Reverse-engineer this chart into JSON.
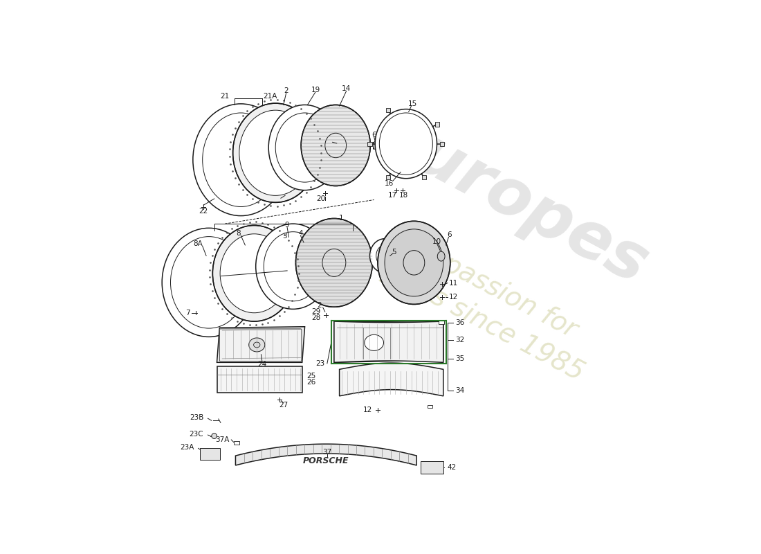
{
  "bg_color": "#ffffff",
  "line_color": "#1a1a1a",
  "parts_labels": {
    "upper": [
      "21",
      "21A",
      "2",
      "19",
      "14",
      "6",
      "15",
      "16",
      "17",
      "18",
      "20",
      "22"
    ],
    "lower": [
      "1",
      "8A",
      "8",
      "9",
      "3",
      "4",
      "5",
      "2",
      "7",
      "10",
      "6",
      "11",
      "12",
      "28",
      "29"
    ],
    "signals": [
      "23",
      "23A",
      "23B",
      "23C",
      "24",
      "25",
      "26",
      "27",
      "28",
      "29",
      "32",
      "34",
      "35",
      "36",
      "37",
      "37A",
      "42",
      "12"
    ]
  }
}
